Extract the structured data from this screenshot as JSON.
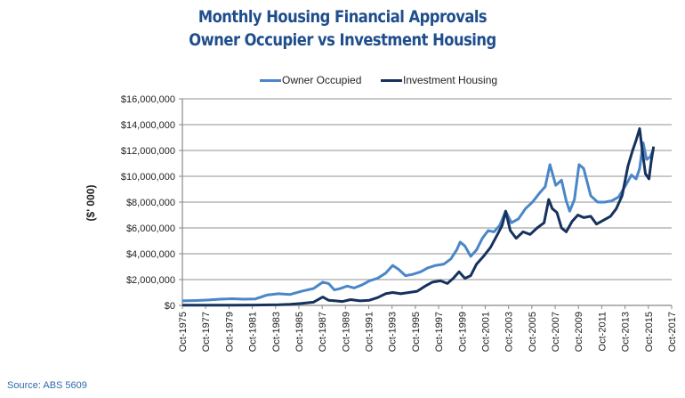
{
  "chart_data": {
    "type": "line",
    "title": "Monthly Housing Financial Approvals",
    "subtitle": "Owner Occupier vs Investment Housing",
    "xlabel": "",
    "ylabel": "($' 000)",
    "ylim": [
      0,
      16000000
    ],
    "xlim": [
      1975.75,
      2017.75
    ],
    "grid": true,
    "legend_position": "top",
    "y_ticks": [
      "$0",
      "$2,000,000",
      "$4,000,000",
      "$6,000,000",
      "$8,000,000",
      "$10,000,000",
      "$12,000,000",
      "$14,000,000",
      "$16,000,000"
    ],
    "x_ticks": [
      "Oct-1975",
      "Oct-1977",
      "Oct-1979",
      "Oct-1981",
      "Oct-1983",
      "Oct-1985",
      "Oct-1987",
      "Oct-1989",
      "Oct-1991",
      "Oct-1993",
      "Oct-1995",
      "Oct-1997",
      "Oct-1999",
      "Oct-2001",
      "Oct-2003",
      "Oct-2005",
      "Oct-2007",
      "Oct-2009",
      "Oct-2011",
      "Oct-2013",
      "Oct-2015",
      "Oct-2017"
    ],
    "colors": {
      "owner": "#4a86c8",
      "investment": "#16325c",
      "grid": "#a6a6a6",
      "title": "#1f4e8c"
    },
    "series": [
      {
        "name": "Owner Occupied",
        "x": [
          1975.75,
          1977,
          1978,
          1979,
          1980,
          1981,
          1982,
          1983,
          1984,
          1985,
          1986,
          1987,
          1987.8,
          1988.3,
          1988.8,
          1989.3,
          1989.9,
          1990.5,
          1991.2,
          1991.8,
          1992.5,
          1993.2,
          1993.8,
          1994.3,
          1994.9,
          1995.5,
          1996.2,
          1996.8,
          1997.5,
          1998.2,
          1998.8,
          1999.3,
          1999.6,
          2000.0,
          2000.5,
          2001.0,
          2001.5,
          2002.0,
          2002.5,
          2003.0,
          2003.5,
          2004.0,
          2004.6,
          2005.2,
          2005.8,
          2006.4,
          2006.9,
          2007.3,
          2007.8,
          2008.3,
          2008.7,
          2009.0,
          2009.4,
          2009.8,
          2010.2,
          2010.8,
          2011.4,
          2012.0,
          2012.6,
          2013.2,
          2013.8,
          2014.3,
          2014.7,
          2015.0,
          2015.3,
          2015.6,
          2015.9,
          2016.2
        ],
        "values": [
          350000,
          380000,
          420000,
          480000,
          520000,
          480000,
          500000,
          800000,
          900000,
          850000,
          1100000,
          1300000,
          1800000,
          1700000,
          1200000,
          1300000,
          1500000,
          1350000,
          1600000,
          1900000,
          2100000,
          2500000,
          3100000,
          2800000,
          2300000,
          2400000,
          2600000,
          2900000,
          3100000,
          3200000,
          3600000,
          4300000,
          4900000,
          4600000,
          3800000,
          4300000,
          5200000,
          5800000,
          5700000,
          6200000,
          7300000,
          6400000,
          6700000,
          7500000,
          8000000,
          8700000,
          9200000,
          10900000,
          9300000,
          9700000,
          8100000,
          7300000,
          8200000,
          10900000,
          10600000,
          8500000,
          8000000,
          8000000,
          8100000,
          8400000,
          9300000,
          10100000,
          9800000,
          10600000,
          12600000,
          11300000,
          11500000,
          12100000
        ],
        "color": "#4a86c8"
      },
      {
        "name": "Investment Housing",
        "x": [
          1975.75,
          1978,
          1980,
          1982,
          1984,
          1985,
          1986,
          1987,
          1987.8,
          1988.3,
          1988.9,
          1989.5,
          1990.2,
          1991.0,
          1991.8,
          1992.5,
          1993.2,
          1993.8,
          1994.5,
          1995.2,
          1995.9,
          1996.6,
          1997.2,
          1997.9,
          1998.5,
          1999.0,
          1999.5,
          2000.0,
          2000.5,
          2001.0,
          2001.6,
          2002.2,
          2002.8,
          2003.2,
          2003.5,
          2003.9,
          2004.4,
          2005.0,
          2005.6,
          2006.2,
          2006.8,
          2007.2,
          2007.5,
          2007.9,
          2008.3,
          2008.7,
          2009.2,
          2009.7,
          2010.2,
          2010.8,
          2011.3,
          2011.9,
          2012.5,
          2013.0,
          2013.5,
          2014.0,
          2014.4,
          2014.7,
          2015.0,
          2015.2,
          2015.5,
          2015.8,
          2016.0,
          2016.2
        ],
        "values": [
          20000,
          20000,
          20000,
          30000,
          50000,
          80000,
          150000,
          250000,
          650000,
          400000,
          350000,
          300000,
          450000,
          350000,
          400000,
          600000,
          900000,
          1000000,
          900000,
          1000000,
          1100000,
          1500000,
          1800000,
          1900000,
          1700000,
          2100000,
          2600000,
          2100000,
          2300000,
          3200000,
          3800000,
          4500000,
          5500000,
          6200000,
          7300000,
          5800000,
          5200000,
          5700000,
          5500000,
          6000000,
          6400000,
          8200000,
          7500000,
          7200000,
          6000000,
          5700000,
          6500000,
          7000000,
          6800000,
          6900000,
          6300000,
          6600000,
          6900000,
          7500000,
          8500000,
          10800000,
          12000000,
          12800000,
          13700000,
          12200000,
          10200000,
          9800000,
          11200000,
          12300000
        ],
        "color": "#16325c"
      }
    ]
  },
  "footer": {
    "source": "Source: ABS 5609"
  }
}
